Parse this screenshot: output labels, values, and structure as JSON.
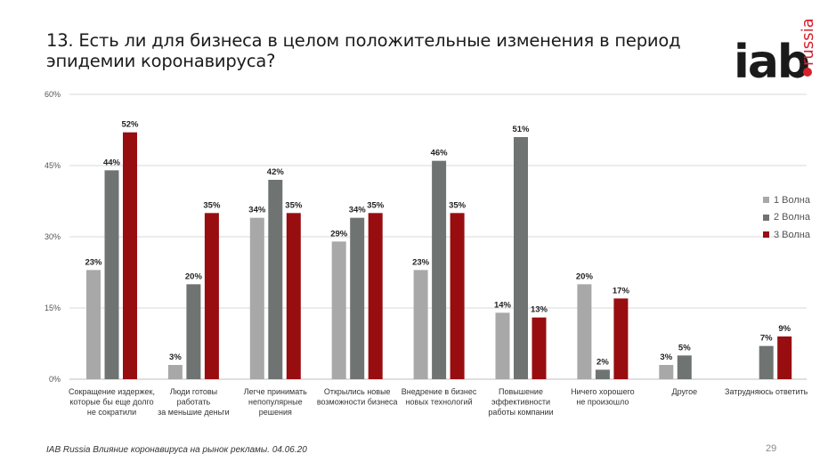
{
  "header": {
    "title_line1": "13. Есть ли для бизнеса в целом положительные изменения в период",
    "title_line2": "эпидемии коронавируса?"
  },
  "logo": {
    "main": "iab",
    "sub": "russia"
  },
  "footer": {
    "source": "IAB Russia Влияние коронавируса на рынок рекламы. 04.06.20",
    "page_number": "29"
  },
  "colors": {
    "wave1": "#a8a8a8",
    "wave2": "#6f7473",
    "wave3": "#980d10",
    "grid": "#d9d9d9"
  },
  "chart_data": {
    "type": "bar",
    "y_ticks": [
      "0%",
      "15%",
      "30%",
      "45%",
      "60%"
    ],
    "y_tick_values": [
      0,
      15,
      30,
      45,
      60
    ],
    "ylim": [
      0,
      60
    ],
    "grid": true,
    "legend_position": "right",
    "categories": [
      [
        "Сокращение издержек,",
        "которые бы еще долго",
        "не сократили"
      ],
      [
        "Люди готовы",
        "работать",
        "за меньшие деньги"
      ],
      [
        "Легче принимать",
        "непопулярные",
        "решения"
      ],
      [
        "Открылись новые",
        "возможности бизнеса"
      ],
      [
        "Внедрение в бизнес",
        "новых технологий"
      ],
      [
        "Повышение",
        "эффективности",
        "работы компании"
      ],
      [
        "Ничего хорошего",
        "не произошло"
      ],
      [
        "Другое"
      ],
      [
        "Затрудняюсь ответить"
      ]
    ],
    "series": [
      {
        "name": "1 Волна",
        "values": [
          23,
          3,
          34,
          29,
          23,
          14,
          20,
          3,
          null
        ],
        "labels": [
          "23%",
          "3%",
          "34%",
          "29%",
          "23%",
          "14%",
          "20%",
          "3%",
          ""
        ]
      },
      {
        "name": "2 Волна",
        "values": [
          44,
          20,
          42,
          34,
          46,
          51,
          2,
          5,
          7
        ],
        "labels": [
          "44%",
          "20%",
          "42%",
          "34%",
          "46%",
          "51%",
          "2%",
          "5%",
          "7%"
        ]
      },
      {
        "name": "3 Волна",
        "values": [
          52,
          35,
          35,
          35,
          35,
          13,
          17,
          null,
          9
        ],
        "labels": [
          "52%",
          "35%",
          "35%",
          "35%",
          "35%",
          "13%",
          "17%",
          "",
          "9%"
        ]
      }
    ]
  }
}
